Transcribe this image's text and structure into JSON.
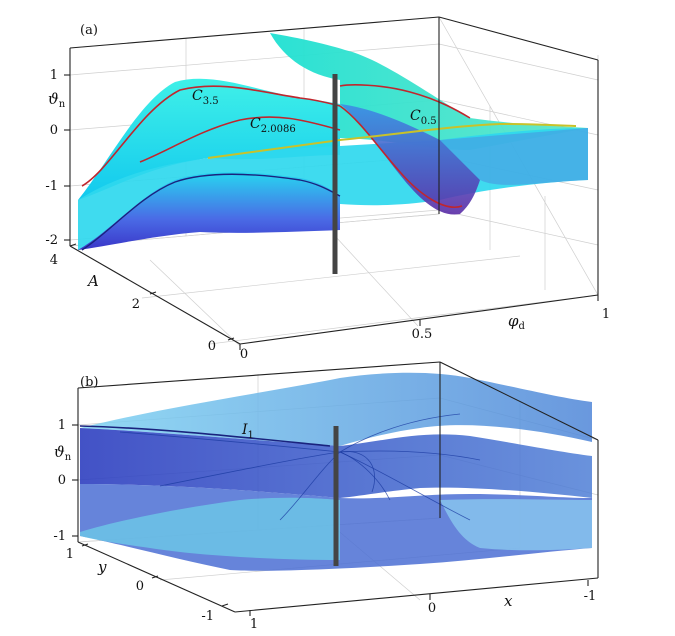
{
  "panels": [
    {
      "label": "(a)",
      "zlabel": "ϑ",
      "zlabel_sub": "n",
      "ylabel": "A",
      "xlabel": "φ",
      "xlabel_sub": "d",
      "z_ticks": [
        "1",
        "0",
        "-1",
        "-2"
      ],
      "y_ticks": [
        "4",
        "2",
        "0"
      ],
      "x_ticks": [
        "0",
        "0.5",
        "1"
      ],
      "curves": [
        {
          "name": "C",
          "sub": "3.5",
          "color": "#c0262d"
        },
        {
          "name": "C",
          "sub": "2.0086",
          "color": "#c0262d"
        },
        {
          "name": "C",
          "sub": "0.5",
          "color": "#c8c22a"
        }
      ]
    },
    {
      "label": "(b)",
      "zlabel": "ϑ",
      "zlabel_sub": "n",
      "ylabel": "y",
      "xlabel": "x",
      "z_ticks": [
        "1",
        "0",
        "-1"
      ],
      "y_ticks": [
        "1",
        "0",
        "-1"
      ],
      "x_ticks": [
        "1",
        "0",
        "-1"
      ],
      "curves": [
        {
          "name": "I",
          "sub": "1",
          "color": "#1a237e"
        }
      ]
    }
  ],
  "chart_data": [
    {
      "type": "surface",
      "title": "",
      "xlabel": "φd",
      "ylabel": "A",
      "zlabel": "ϑn",
      "xlim": [
        0,
        1
      ],
      "ylim": [
        0,
        4
      ],
      "zlim": [
        -2,
        1
      ],
      "surface_colors": [
        "#00e5ee",
        "#3f51d9"
      ],
      "grid": true,
      "curves": [
        {
          "name": "C3.5",
          "A": 3.5,
          "color": "#c0262d"
        },
        {
          "name": "C2.0086",
          "A": 2.0086,
          "color": "#c0262d"
        },
        {
          "name": "C0.5",
          "A": 0.5,
          "color": "#c8c22a"
        }
      ],
      "singular_line": {
        "x": 0.5
      }
    },
    {
      "type": "surface",
      "title": "",
      "xlabel": "x",
      "ylabel": "y",
      "zlabel": "ϑn",
      "xlim": [
        -1,
        1
      ],
      "ylim": [
        -1,
        1
      ],
      "zlim": [
        -1,
        1
      ],
      "surface_colors": [
        "#6ec6f0",
        "#2a3fc4"
      ],
      "grid": true,
      "curves": [
        {
          "name": "I1",
          "color": "#1a237e"
        }
      ],
      "singular_line": {
        "x": 0,
        "y": 0
      }
    }
  ]
}
